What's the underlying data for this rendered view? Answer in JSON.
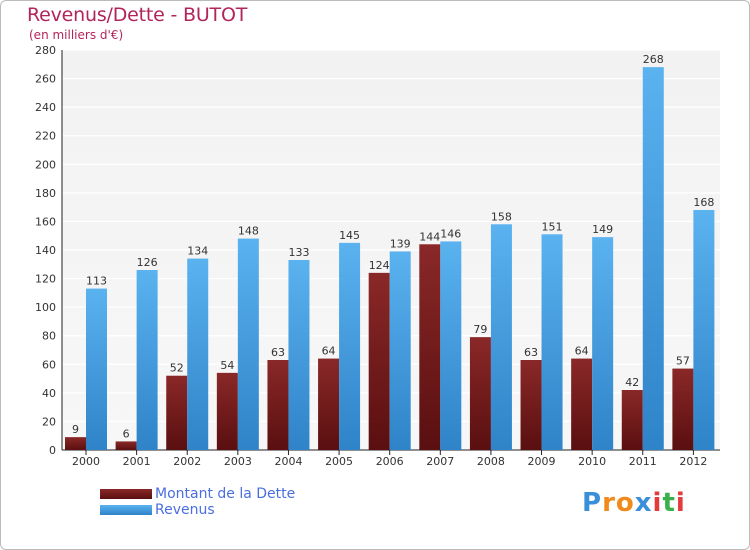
{
  "chart_data": {
    "type": "bar",
    "title": "Revenus/Dette - BUTOT",
    "subtitle": "(en milliers d'€)",
    "xlabel": "",
    "ylabel": "",
    "ylim": [
      0,
      280
    ],
    "yticks": [
      0,
      20,
      40,
      60,
      80,
      100,
      120,
      140,
      160,
      180,
      200,
      220,
      240,
      260,
      280
    ],
    "grid": true,
    "legend_position": "bottom-left",
    "categories": [
      "2000",
      "2001",
      "2002",
      "2003",
      "2004",
      "2005",
      "2006",
      "2007",
      "2008",
      "2009",
      "2010",
      "2011",
      "2012"
    ],
    "series": [
      {
        "name": "Montant de la Dette",
        "color": "#7a1c1c",
        "values": [
          9,
          6,
          52,
          54,
          63,
          64,
          124,
          144,
          79,
          63,
          64,
          42,
          57
        ]
      },
      {
        "name": "Revenus",
        "color": "#4ea6e6",
        "values": [
          113,
          126,
          134,
          148,
          133,
          145,
          139,
          146,
          158,
          151,
          149,
          268,
          168
        ]
      }
    ]
  },
  "logo": {
    "letters": [
      "P",
      "r",
      "o",
      "x",
      "i",
      "t",
      "i"
    ],
    "colors": [
      "#3a8fd9",
      "#f08a1c",
      "#f08a1c",
      "#3a8fd9",
      "#e23b3b",
      "#3ab04a",
      "#e23b3b"
    ]
  }
}
